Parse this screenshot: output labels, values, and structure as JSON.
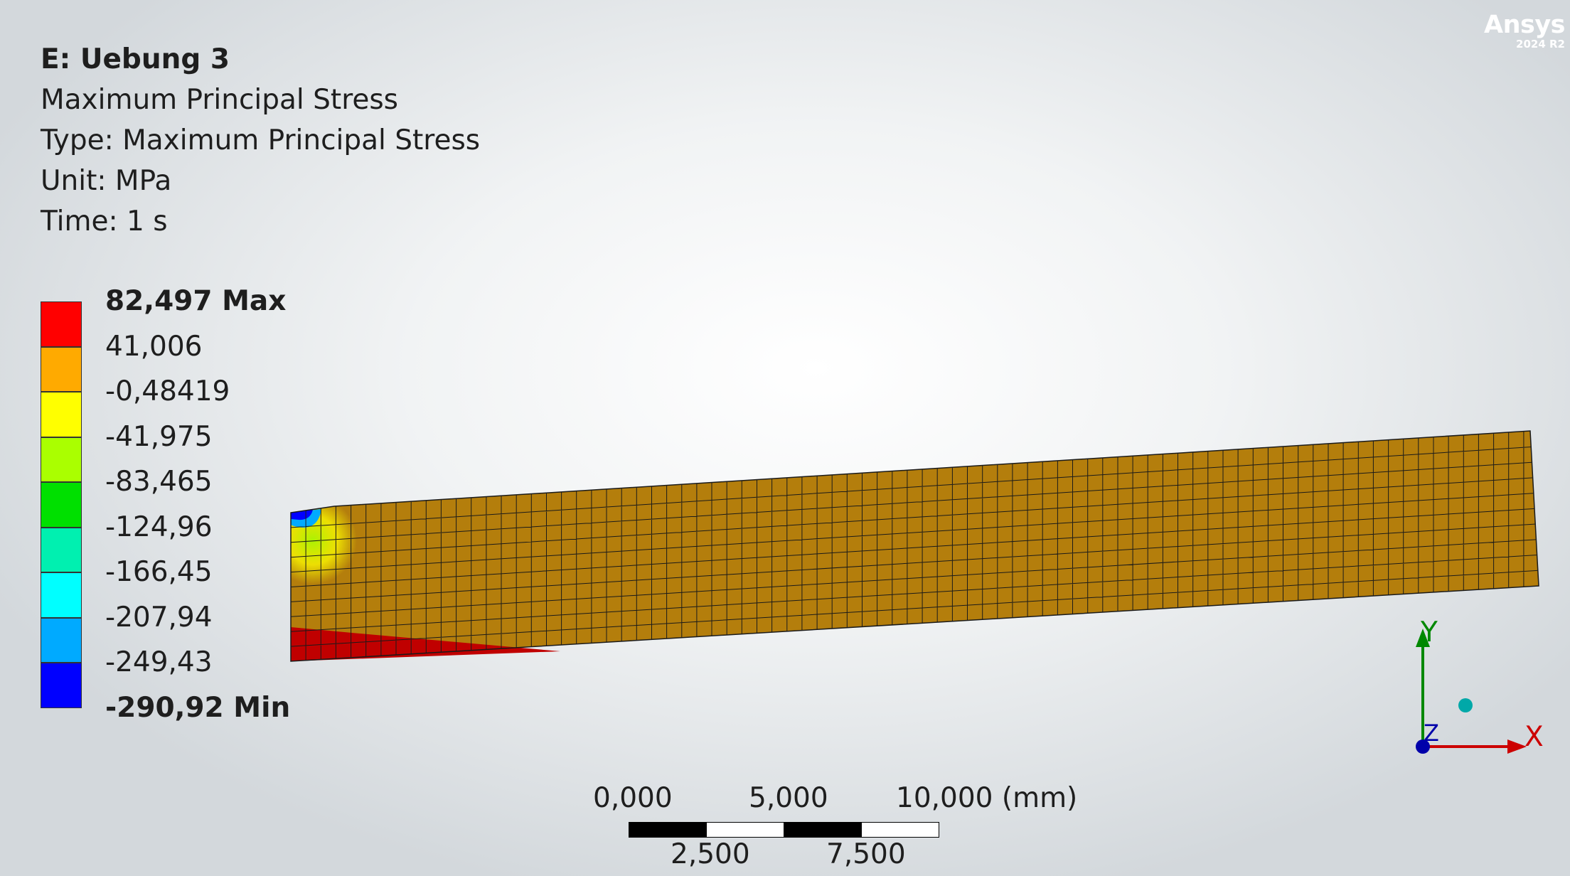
{
  "brand": {
    "name": "Ansys",
    "version": "2024 R2"
  },
  "header": {
    "title": "E: Uebung 3",
    "result_name": "Maximum Principal Stress",
    "type_line": "Type: Maximum Principal Stress",
    "unit_line": "Unit: MPa",
    "time_line": "Time: 1 s"
  },
  "legend": {
    "labels": [
      "82,497 Max",
      "41,006",
      "-0,48419",
      "-41,975",
      "-83,465",
      "-124,96",
      "-166,45",
      "-207,94",
      "-249,43",
      "-290,92 Min"
    ],
    "colors": [
      "#ff0000",
      "#ffaa00",
      "#ffff00",
      "#aaff00",
      "#00e000",
      "#00f0b0",
      "#00ffff",
      "#00aaff",
      "#0000ff"
    ]
  },
  "model": {
    "colors": {
      "body": "#b47e0c",
      "max_region": "#c00000",
      "mesh": "#1a1a1a"
    }
  },
  "scale": {
    "top_labels": [
      "0,000",
      "5,000",
      "10,000 (mm)"
    ],
    "bottom_labels": [
      "2,500",
      "7,500"
    ]
  },
  "triad": {
    "y_label": "Y",
    "x_label": "X",
    "z_label": "Z",
    "colors": {
      "x": "#cc0000",
      "y": "#008800",
      "z": "#0000aa",
      "iso": "#00a8a8"
    }
  }
}
